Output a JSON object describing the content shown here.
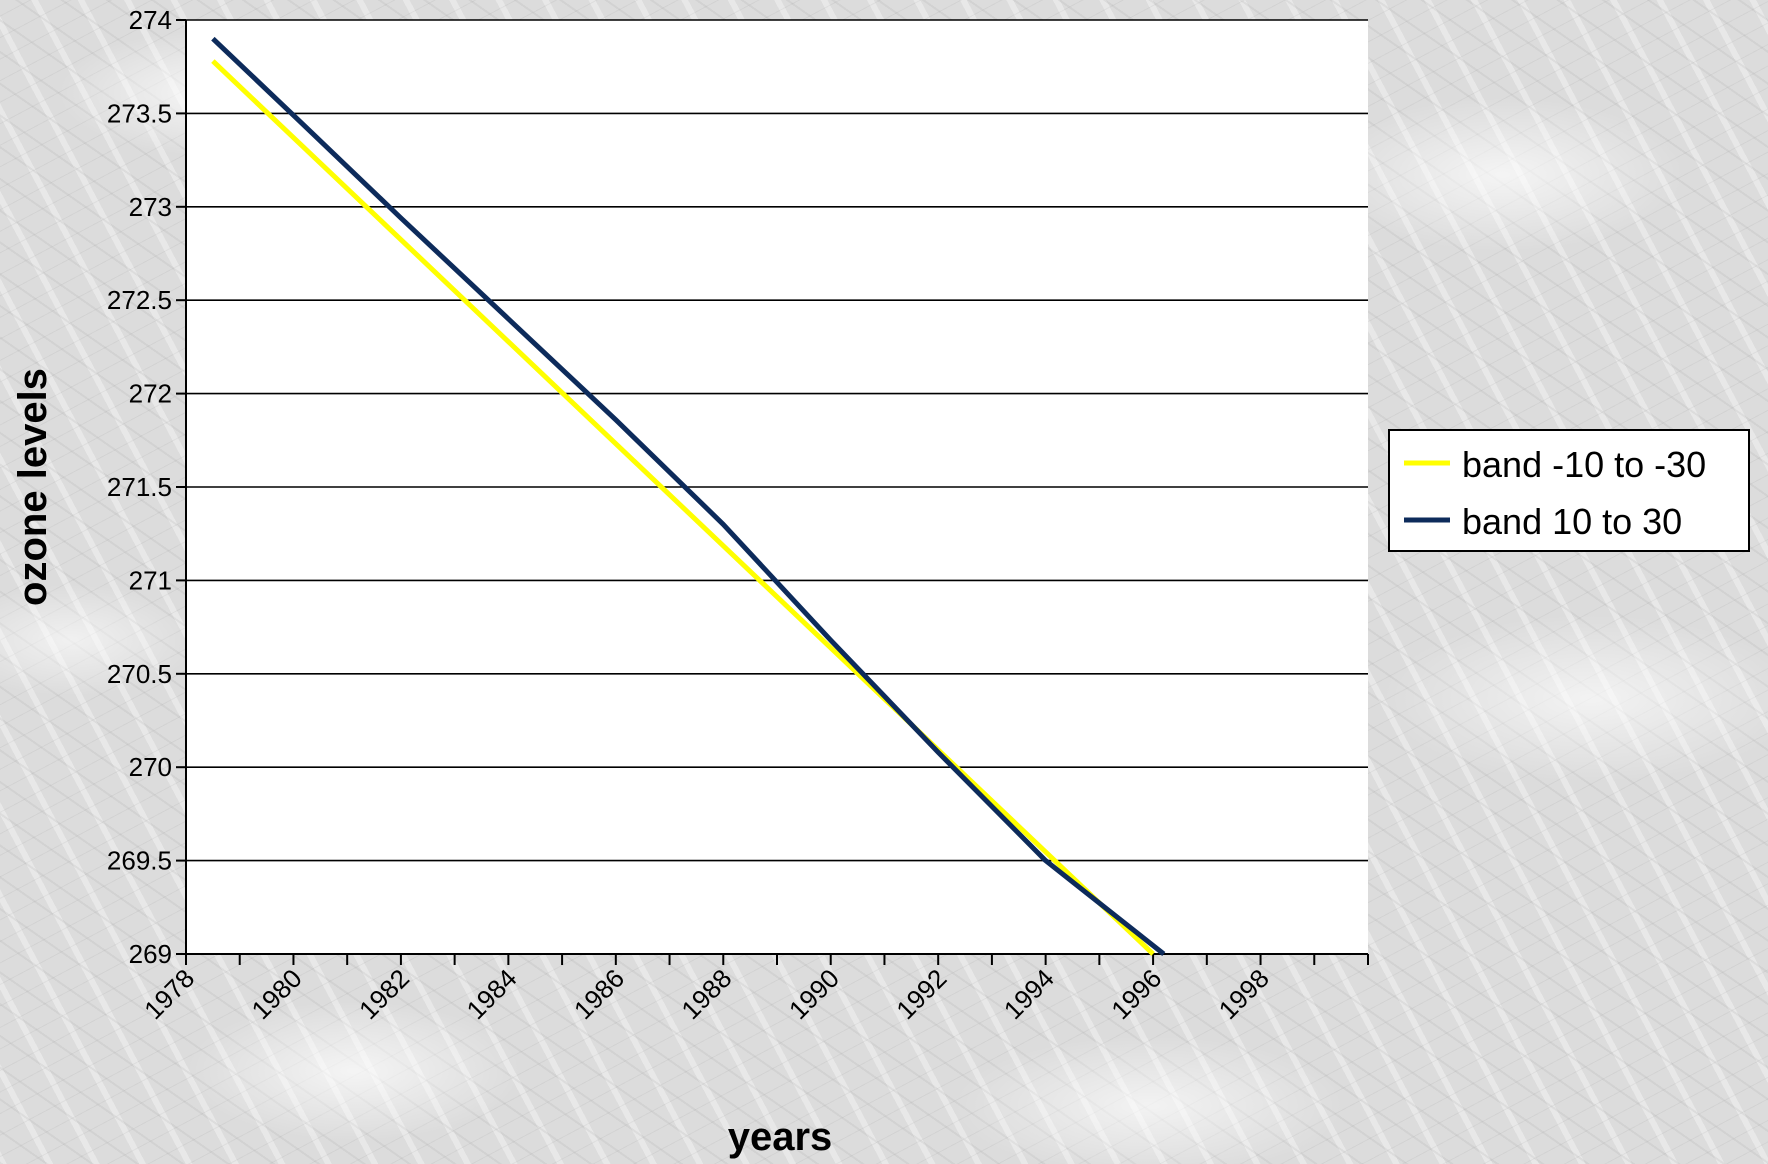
{
  "chart_data": {
    "type": "line",
    "title": "",
    "xlabel": "years",
    "ylabel": "ozone levels",
    "xlim": [
      1978,
      2000
    ],
    "ylim": [
      269,
      274
    ],
    "x_ticks": [
      1978,
      1980,
      1982,
      1984,
      1986,
      1988,
      1990,
      1992,
      1994,
      1996,
      1998
    ],
    "x_minor_ticks": [
      1978,
      1979,
      1980,
      1981,
      1982,
      1983,
      1984,
      1985,
      1986,
      1987,
      1988,
      1989,
      1990,
      1991,
      1992,
      1993,
      1994,
      1995,
      1996,
      1997,
      1998,
      1999,
      2000
    ],
    "y_ticks": [
      269,
      269.5,
      270,
      270.5,
      271,
      271.5,
      272,
      272.5,
      273,
      273.5,
      274
    ],
    "y_tick_labels": [
      "269",
      "269.5",
      "270",
      "270.5",
      "271",
      "271.5",
      "272",
      "272.5",
      "273",
      "273.5",
      "274"
    ],
    "grid": "horizontal",
    "legend_position": "right",
    "series": [
      {
        "name": "band -10 to -30",
        "color": "#ffff00",
        "x": [
          1978.5,
          1996
        ],
        "y": [
          273.78,
          269
        ]
      },
      {
        "name": "band 10 to 30",
        "color": "#0d2b5b",
        "x": [
          1978.5,
          1980,
          1982,
          1984,
          1986,
          1988,
          1990,
          1992,
          1994,
          1996.2
        ],
        "y": [
          273.9,
          273.49,
          272.94,
          272.4,
          271.86,
          271.3,
          270.68,
          270.08,
          269.5,
          269
        ]
      }
    ]
  }
}
